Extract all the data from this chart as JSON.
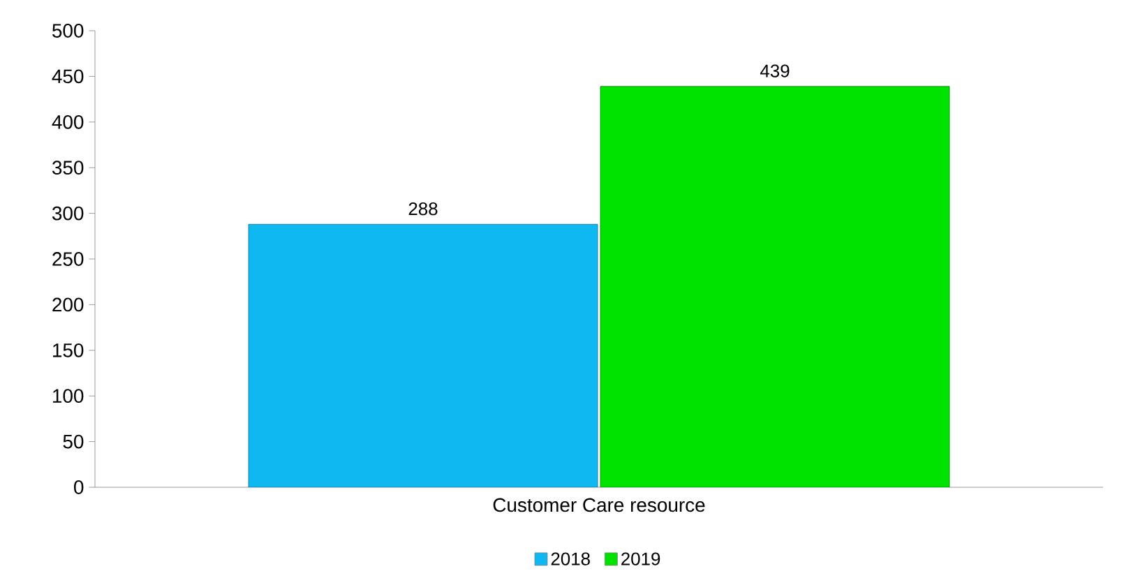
{
  "chart_data": {
    "type": "bar",
    "categories": [
      "Customer Care resource"
    ],
    "series": [
      {
        "name": "2018",
        "color": "#10b8f2",
        "values": [
          288
        ]
      },
      {
        "name": "2019",
        "color": "#00e300",
        "values": [
          439
        ]
      }
    ],
    "ylim": [
      0,
      500
    ],
    "yticks": [
      0,
      50,
      100,
      150,
      200,
      250,
      300,
      350,
      400,
      450,
      500
    ],
    "data_labels": true,
    "legend": "bottom",
    "grid": false
  }
}
